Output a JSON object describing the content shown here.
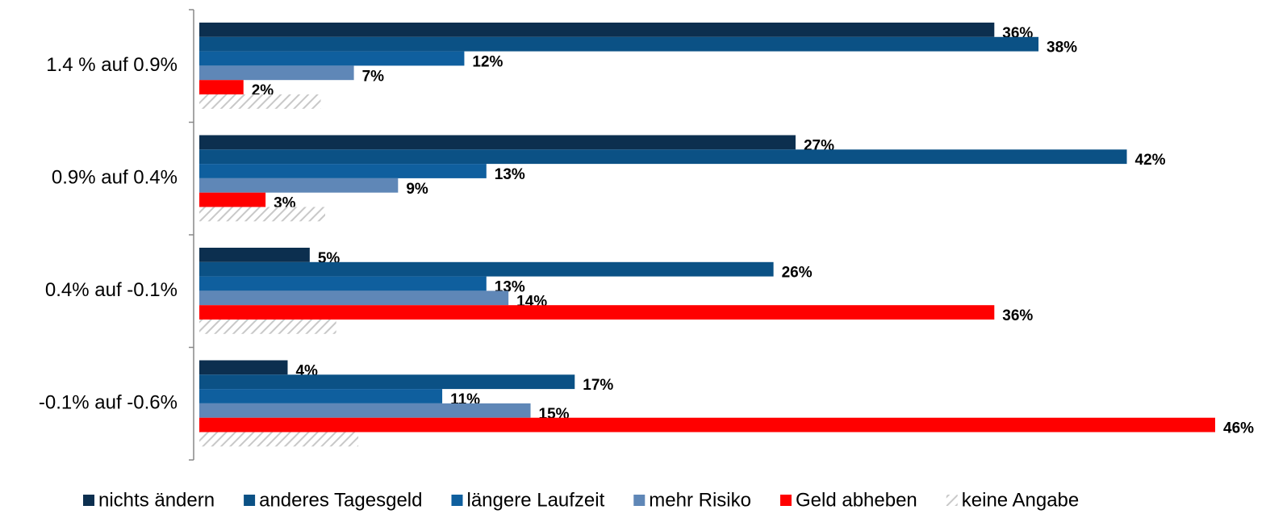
{
  "chart_data": {
    "type": "hbar",
    "categories": [
      "1.4 % auf 0.9%",
      "0.9% auf 0.4%",
      "0.4% auf -0.1%",
      "-0.1% auf -0.6%"
    ],
    "series": [
      {
        "name": "nichts ändern",
        "color": "#0c2f4f",
        "values": [
          36,
          27,
          5,
          4
        ],
        "value_labels": [
          "36%",
          "27%",
          "5%",
          "4%"
        ]
      },
      {
        "name": "anderes Tagesgeld",
        "color": "#0b5185",
        "values": [
          38,
          42,
          26,
          17
        ],
        "value_labels": [
          "38%",
          "42%",
          "26%",
          "17%"
        ]
      },
      {
        "name": "längere Laufzeit",
        "color": "#0f5f9e",
        "values": [
          12,
          13,
          13,
          11
        ],
        "value_labels": [
          "12%",
          "13%",
          "13%",
          "11%"
        ]
      },
      {
        "name": "mehr Risiko",
        "color": "#5f87b7",
        "values": [
          7,
          9,
          14,
          15
        ],
        "value_labels": [
          "7%",
          "9%",
          "14%",
          "15%"
        ]
      },
      {
        "name": "Geld abheben",
        "color": "#ff0000",
        "values": [
          2,
          3,
          36,
          46
        ],
        "value_labels": [
          "2%",
          "3%",
          "36%",
          "46%"
        ]
      },
      {
        "name": "keine Angabe",
        "color": "#c8c8c8",
        "pattern": "hatch",
        "values": [
          5.5,
          5.7,
          6.2,
          7.2
        ]
      }
    ],
    "xlim": [
      0,
      46
    ]
  }
}
